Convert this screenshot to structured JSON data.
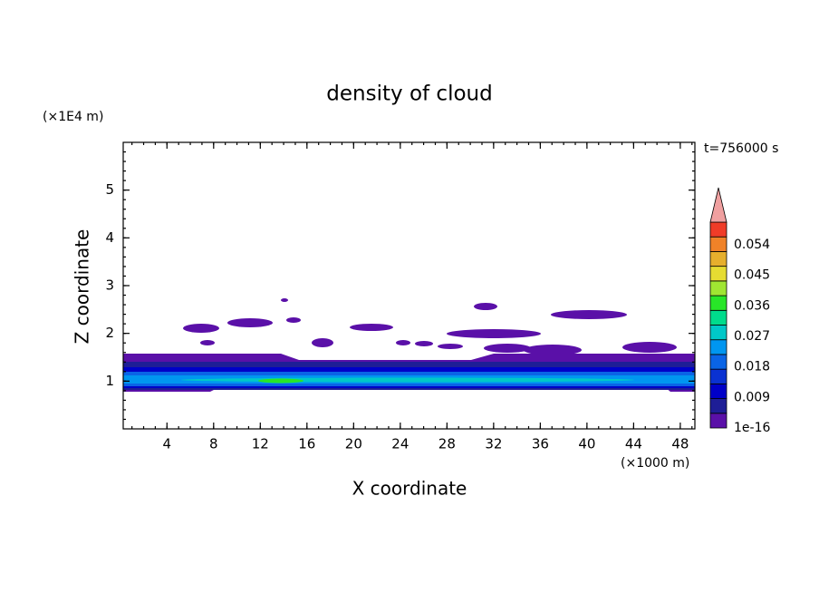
{
  "chart_data": {
    "type": "contour",
    "title": "density of cloud",
    "xlabel": "X coordinate",
    "ylabel": "Z coordinate",
    "xunit": "(×1000 m)",
    "yunit": "(×1E4 m)",
    "time_label": "t=756000 s",
    "xlim": [
      0.25,
      49.25
    ],
    "xticks": [
      4,
      8,
      12,
      16,
      20,
      24,
      28,
      32,
      36,
      40,
      44,
      48
    ],
    "ylim": [
      0,
      6
    ],
    "yticks": [
      1,
      2,
      3,
      4,
      5
    ],
    "colorbar": {
      "clim": [
        0,
        0.0607
      ],
      "levels": [
        {
          "value": 0,
          "label": "1e-16"
        },
        0.009,
        0.018,
        0.027,
        0.036,
        0.045,
        0.054
      ],
      "colors": [
        "#5a10a8",
        "#1e1e96",
        "#0000c8",
        "#0a32d2",
        "#0a64e6",
        "#0096f0",
        "#00c8c8",
        "#00dc8c",
        "#28e628",
        "#a0e632",
        "#e6dc32",
        "#e6af2d",
        "#f08228",
        "#f03c28"
      ],
      "over_color": "#f0a0a0"
    }
  }
}
